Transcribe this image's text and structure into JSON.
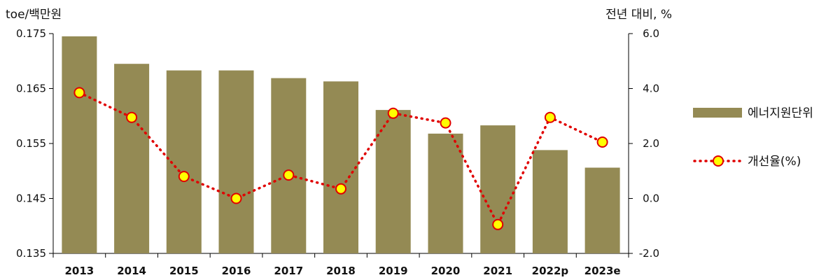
{
  "chart_data": {
    "type": "bar+line",
    "categories": [
      "2013",
      "2014",
      "2015",
      "2016",
      "2017",
      "2018",
      "2019",
      "2020",
      "2021",
      "2022p",
      "2023e"
    ],
    "series": [
      {
        "name": "에너지원단위",
        "type": "bar",
        "axis": "left",
        "color": "#948A54",
        "values": [
          0.1745,
          0.1695,
          0.1683,
          0.1683,
          0.1669,
          0.1663,
          0.1611,
          0.1568,
          0.1583,
          0.1538,
          0.1506
        ]
      },
      {
        "name": "개선율(%)",
        "type": "line",
        "axis": "right",
        "color": "#E00000",
        "marker_fill": "#FFFF00",
        "line_style": "dotted",
        "values": [
          3.85,
          2.95,
          0.8,
          0.0,
          0.85,
          0.35,
          3.1,
          2.75,
          -0.95,
          2.95,
          2.05
        ]
      }
    ],
    "left_axis": {
      "title": "toe/백만원",
      "min": 0.135,
      "max": 0.175,
      "ticks": [
        "0.175",
        "0.165",
        "0.155",
        "0.145",
        "0.135"
      ],
      "tick_values": [
        0.175,
        0.165,
        0.155,
        0.145,
        0.135
      ]
    },
    "right_axis": {
      "title": "전년 대비, %",
      "min": -2.0,
      "max": 6.0,
      "ticks": [
        "6.0",
        "4.0",
        "2.0",
        "0.0",
        "-2.0"
      ],
      "tick_values": [
        6.0,
        4.0,
        2.0,
        0.0,
        -2.0
      ]
    },
    "grid": false,
    "legend_position": "right"
  }
}
